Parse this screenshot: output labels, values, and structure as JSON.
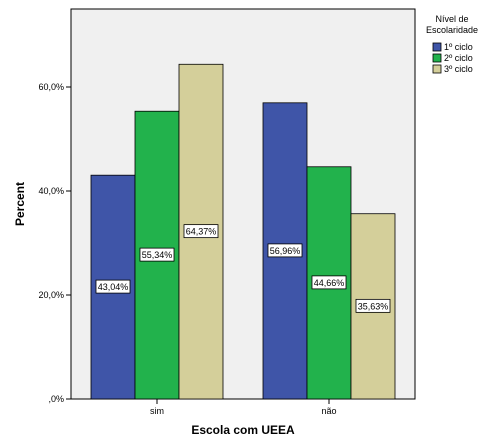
{
  "chart_data": {
    "type": "bar",
    "categories": [
      "sim",
      "não"
    ],
    "series": [
      {
        "name": "1º ciclo",
        "color": "#3f55a8",
        "values": [
          43.04,
          56.96
        ],
        "labels": [
          "43,04%",
          "56,96%"
        ]
      },
      {
        "name": "2º ciclo",
        "color": "#22b24c",
        "values": [
          55.34,
          44.66
        ],
        "labels": [
          "55,34%",
          "44,66%"
        ]
      },
      {
        "name": "3º ciclo",
        "color": "#d4cf9a",
        "values": [
          64.37,
          35.63
        ],
        "labels": [
          "64,37%",
          "35,63%"
        ]
      }
    ],
    "xlabel": "Escola com UEEA",
    "ylabel": "Percent",
    "ylim": [
      0,
      75
    ],
    "yticks": [
      0,
      20,
      40,
      60
    ],
    "ytick_labels": [
      ",0%",
      "20,0%",
      "40,0%",
      "60,0%"
    ],
    "legend": {
      "title_line1": "Nível de",
      "title_line2": "Escolaridade",
      "position": "top-right"
    },
    "grid": false,
    "plot_background": "#f0f0f0"
  }
}
